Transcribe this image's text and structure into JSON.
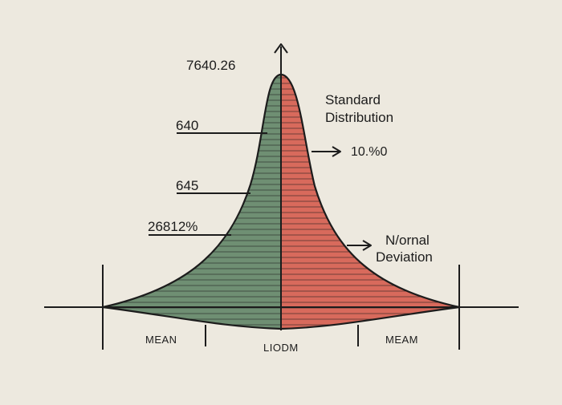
{
  "colors": {
    "background": "#ede9df",
    "left_fill": "#6f8f73",
    "right_fill": "#d86a5c",
    "stroke": "#1c1c1c"
  },
  "labels": {
    "top_value": "7640.26",
    "left_1": "640",
    "left_2": "645",
    "left_3": "26812%",
    "title_line1": "Standard",
    "title_line2": "Distribution",
    "arrow_value": "10.%0",
    "right_line1": "N/ornal",
    "right_line2": "Deviation"
  },
  "axis_labels": {
    "left": "MEAN",
    "center": "LIODM",
    "right": "MEAM"
  }
}
